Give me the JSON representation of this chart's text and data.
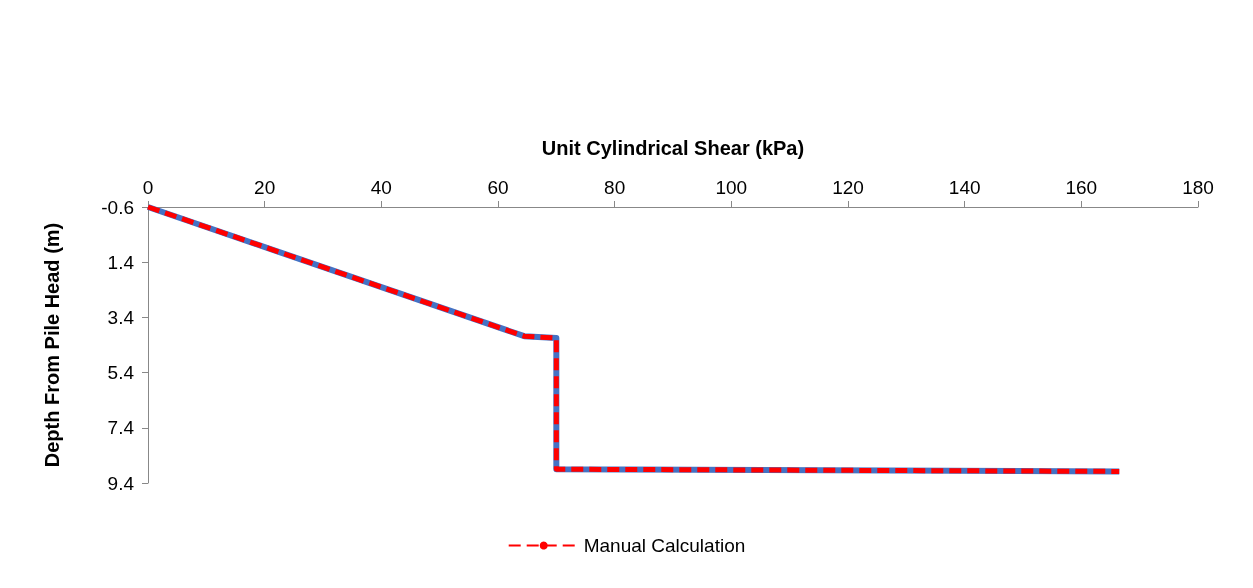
{
  "chart_data": {
    "type": "line",
    "xlabel": "Unit Cylindrical Shear (kPa)",
    "ylabel": "Depth From Pile Head (m)",
    "x": [
      0,
      64.5,
      70,
      70,
      166.5
    ],
    "series": [
      {
        "color": "#4472c4",
        "values": [
          -0.6,
          4.08,
          4.15,
          8.9,
          8.98
        ],
        "line_style": "solid"
      },
      {
        "name": "Manual Calculation",
        "color": "#ff0000",
        "values": [
          -0.6,
          4.08,
          4.15,
          8.9,
          8.98
        ],
        "line_style": "dashed"
      }
    ],
    "xlim": [
      0,
      180
    ],
    "xticks": [
      0,
      20,
      40,
      60,
      80,
      100,
      120,
      140,
      160,
      180
    ],
    "ylim": [
      9.4,
      -0.6
    ],
    "yticks": [
      -0.6,
      1.4,
      3.4,
      5.4,
      7.4,
      9.4
    ],
    "grid": false,
    "legend": "bottom",
    "marker": "none"
  }
}
